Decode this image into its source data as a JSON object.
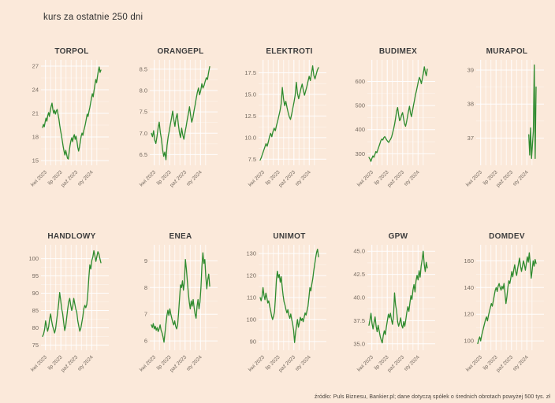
{
  "page": {
    "title": "kurs za ostatnie 250 dni",
    "footer": "źródło: Puls Biznesu, Bankier.pl; dane dotyczą spółek o średnich obrotach powyżej 500 tys. zł",
    "background_color": "#fbe9da",
    "line_color": "#2e8b2e",
    "grid_color": "#ffffff",
    "title_color": "#3d3d3d",
    "tick_color": "#756a60"
  },
  "chart_data": [
    {
      "type": "line",
      "title": "TORPOL",
      "x_tick_labels": [
        "kwi 2023",
        "lip 2023",
        "paź 2023",
        "sty 2024"
      ],
      "y_ticks": [
        15,
        18,
        21,
        24,
        27
      ],
      "y_tick_labels": [
        "15",
        "18",
        "21",
        "24",
        "27"
      ],
      "ylim": [
        14.4,
        27.8
      ],
      "values": [
        19.2,
        19.6,
        19.3,
        19.9,
        20.4,
        20.0,
        20.7,
        21.1,
        20.6,
        21.3,
        21.9,
        22.3,
        21.5,
        21.0,
        21.4,
        20.9,
        21.3,
        21.5,
        20.9,
        20.3,
        19.5,
        18.8,
        18.2,
        17.5,
        16.8,
        16.2,
        15.7,
        16.3,
        15.8,
        15.3,
        15.2,
        16.1,
        16.9,
        17.5,
        17.9,
        17.4,
        18.0,
        18.3,
        17.7,
        18.1,
        17.5,
        16.7,
        16.2,
        16.7,
        17.4,
        18.1,
        18.5,
        18.2,
        18.8,
        19.2,
        19.7,
        20.3,
        20.9,
        20.6,
        21.2,
        21.7,
        22.3,
        22.9,
        23.5,
        23.1,
        23.9,
        24.6,
        25.3,
        24.9,
        25.7,
        26.4,
        26.9,
        26.2,
        26.5
      ]
    },
    {
      "type": "line",
      "title": "ORANGEPL",
      "x_tick_labels": [
        "kwi 2023",
        "lip 2023",
        "paź 2023",
        "sty 2024"
      ],
      "y_ticks": [
        6.5,
        7.0,
        7.5,
        8.0,
        8.5
      ],
      "y_tick_labels": [
        "6.5",
        "7.0",
        "7.5",
        "8.0",
        "8.5"
      ],
      "ylim": [
        6.25,
        8.72
      ],
      "values": [
        7.0,
        6.92,
        7.06,
        6.84,
        6.76,
        6.92,
        7.12,
        7.26,
        7.02,
        6.86,
        6.62,
        6.46,
        6.56,
        6.38,
        6.72,
        6.92,
        7.06,
        7.22,
        7.36,
        7.52,
        7.32,
        7.16,
        7.36,
        7.46,
        7.22,
        7.02,
        6.9,
        7.12,
        6.96,
        6.86,
        7.02,
        7.16,
        7.32,
        7.46,
        7.62,
        7.42,
        7.26,
        7.36,
        7.52,
        7.66,
        7.82,
        7.96,
        8.06,
        7.9,
        8.0,
        8.16,
        8.06,
        8.12,
        8.22,
        8.3,
        8.26,
        8.42,
        8.56
      ]
    },
    {
      "type": "line",
      "title": "ELEKTROTI",
      "x_tick_labels": [
        "kwi 2023",
        "lip 2023",
        "paź 2023",
        "sty 2024"
      ],
      "y_ticks": [
        7.5,
        10.0,
        12.5,
        15.0,
        17.5
      ],
      "y_tick_labels": [
        "7.5",
        "10.0",
        "12.5",
        "15.0",
        "17.5"
      ],
      "ylim": [
        6.8,
        19.0
      ],
      "values": [
        7.4,
        7.7,
        8.1,
        8.5,
        8.9,
        9.3,
        9.0,
        9.5,
        10.1,
        10.5,
        10.1,
        10.7,
        11.1,
        10.8,
        11.4,
        11.9,
        12.5,
        13.1,
        13.9,
        15.8,
        14.5,
        13.7,
        14.2,
        13.5,
        12.9,
        12.4,
        12.1,
        12.7,
        13.4,
        14.1,
        14.9,
        16.4,
        15.1,
        14.5,
        15.1,
        15.7,
        16.2,
        15.5,
        14.9,
        15.4,
        15.9,
        16.5,
        17.1,
        16.6,
        17.4,
        18.3,
        17.2,
        16.8,
        17.3,
        17.8,
        18.1
      ]
    },
    {
      "type": "line",
      "title": "BUDIMEX",
      "x_tick_labels": [
        "kwi 2023",
        "lip 2023",
        "paź 2023",
        "sty 2024"
      ],
      "y_ticks": [
        300,
        400,
        500,
        600
      ],
      "y_tick_labels": [
        "300",
        "400",
        "500",
        "600"
      ],
      "ylim": [
        252,
        690
      ],
      "values": [
        285,
        278,
        268,
        281,
        291,
        285,
        297,
        309,
        304,
        317,
        329,
        341,
        354,
        361,
        357,
        367,
        371,
        364,
        357,
        351,
        347,
        355,
        361,
        371,
        387,
        404,
        424,
        449,
        477,
        492,
        461,
        437,
        444,
        461,
        471,
        447,
        424,
        414,
        431,
        454,
        477,
        497,
        469,
        454,
        477,
        500,
        521,
        544,
        561,
        581,
        601,
        617,
        607,
        591,
        611,
        634,
        661,
        639,
        624,
        651
      ]
    },
    {
      "type": "line",
      "title": "MURAPOL",
      "x_tick_labels": [
        "kwi 2023",
        "lip 2023",
        "paź 2023",
        "sty 2024"
      ],
      "y_ticks": [
        37,
        38,
        39
      ],
      "y_tick_labels": [
        "37",
        "38",
        "39"
      ],
      "ylim": [
        36.2,
        39.3
      ],
      "values": [
        null,
        null,
        null,
        null,
        null,
        null,
        null,
        null,
        null,
        null,
        null,
        null,
        null,
        null,
        null,
        null,
        null,
        null,
        null,
        null,
        null,
        null,
        null,
        null,
        null,
        null,
        null,
        null,
        null,
        null,
        null,
        null,
        null,
        null,
        null,
        null,
        null,
        null,
        null,
        null,
        null,
        null,
        null,
        null,
        null,
        null,
        null,
        null,
        null,
        null,
        null,
        null,
        null,
        null,
        null,
        null,
        37.1,
        36.5,
        37.3,
        36.4,
        36.8,
        37.2,
        39.15,
        36.4,
        38.5
      ]
    },
    {
      "type": "line",
      "title": "HANDLOWY",
      "x_tick_labels": [
        "kwi 2023",
        "lip 2023",
        "paź 2023",
        "sty 2024"
      ],
      "y_ticks": [
        75,
        80,
        85,
        90,
        95,
        100
      ],
      "y_tick_labels": [
        "75",
        "80",
        "85",
        "90",
        "95",
        "100"
      ],
      "ylim": [
        73.5,
        104
      ],
      "values": [
        77.5,
        78.2,
        79.5,
        82.0,
        80.5,
        79.0,
        80.2,
        82.5,
        84.0,
        82.0,
        80.5,
        79.5,
        78.5,
        79.8,
        82.2,
        84.5,
        87.0,
        90.2,
        88.0,
        85.5,
        84.0,
        81.5,
        79.2,
        80.5,
        83.0,
        85.5,
        87.5,
        88.5,
        86.5,
        85.0,
        86.2,
        88.5,
        87.0,
        85.5,
        84.5,
        82.0,
        80.5,
        79.0,
        79.8,
        81.5,
        83.2,
        85.5,
        86.5,
        85.8,
        86.8,
        90.0,
        94.5,
        98.2,
        97.0,
        99.5,
        100.5,
        102.3,
        100.8,
        99.2,
        100.6,
        102.0,
        101.4,
        100.0,
        98.8
      ]
    },
    {
      "type": "line",
      "title": "ENEA",
      "x_tick_labels": [
        "kwi 2023",
        "lip 2023",
        "paź 2023",
        "sty 2024"
      ],
      "y_ticks": [
        6,
        7,
        8,
        9
      ],
      "y_tick_labels": [
        "6",
        "7",
        "8",
        "9"
      ],
      "ylim": [
        5.65,
        9.6
      ],
      "values": [
        6.6,
        6.5,
        6.65,
        6.45,
        6.55,
        6.4,
        6.5,
        6.35,
        6.45,
        6.6,
        6.4,
        6.3,
        6.15,
        5.95,
        6.3,
        6.65,
        6.95,
        7.15,
        6.95,
        7.2,
        7.0,
        6.85,
        6.7,
        6.6,
        6.75,
        6.55,
        6.45,
        6.6,
        7.05,
        7.6,
        8.1,
        8.0,
        8.25,
        7.9,
        8.2,
        9.05,
        8.7,
        8.25,
        7.8,
        7.45,
        7.2,
        7.5,
        7.3,
        7.55,
        7.25,
        7.0,
        6.85,
        7.3,
        7.55,
        7.2,
        7.45,
        8.0,
        8.8,
        9.3,
        8.9,
        9.05,
        8.4,
        7.95,
        8.3,
        8.5,
        8.05
      ]
    },
    {
      "type": "line",
      "title": "UNIMOT",
      "x_tick_labels": [
        "kwi 2023",
        "lip 2023",
        "paź 2023",
        "sty 2024"
      ],
      "y_ticks": [
        90,
        100,
        110,
        120,
        130
      ],
      "y_tick_labels": [
        "90",
        "100",
        "110",
        "120",
        "130"
      ],
      "ylim": [
        86,
        134
      ],
      "values": [
        110,
        108.5,
        110.5,
        114.5,
        111,
        109,
        112,
        110,
        107.5,
        108.5,
        106,
        104,
        101.5,
        100,
        101.5,
        103.5,
        110,
        118,
        122,
        119,
        120.5,
        117,
        119.5,
        115,
        111,
        108,
        106.5,
        104.5,
        103,
        104.5,
        102,
        100.5,
        102.5,
        100,
        98,
        95,
        89.5,
        94,
        97,
        100,
        96.5,
        98.5,
        101,
        99.5,
        100.5,
        99,
        101,
        103,
        102,
        104,
        106,
        110,
        114.5,
        113,
        116,
        118.5,
        122,
        125,
        128,
        130.5,
        132,
        128.5
      ]
    },
    {
      "type": "line",
      "title": "GPW",
      "x_tick_labels": [
        "kwi 2023",
        "lip 2023",
        "paź 2023",
        "sty 2024"
      ],
      "y_ticks": [
        35.0,
        37.5,
        40.0,
        42.5,
        45.0
      ],
      "y_tick_labels": [
        "35.0",
        "37.5",
        "40.0",
        "42.5",
        "45.0"
      ],
      "ylim": [
        34.3,
        45.7
      ],
      "values": [
        37.0,
        37.6,
        38.3,
        37.2,
        36.6,
        37.3,
        37.9,
        36.9,
        36.3,
        37.0,
        36.4,
        35.8,
        35.4,
        35.1,
        35.9,
        36.4,
        36.0,
        36.8,
        37.5,
        38.2,
        37.8,
        38.3,
        37.6,
        37.1,
        38.0,
        40.5,
        39.2,
        38.6,
        37.4,
        36.9,
        37.3,
        37.8,
        37.0,
        36.7,
        37.4,
        36.9,
        37.6,
        38.4,
        39.0,
        38.5,
        39.4,
        40.2,
        39.8,
        40.8,
        41.4,
        40.6,
        41.8,
        42.4,
        41.9,
        42.9,
        42.2,
        43.4,
        44.1,
        45.0,
        43.6,
        42.8,
        43.8,
        43.2
      ]
    },
    {
      "type": "line",
      "title": "DOMDEV",
      "x_tick_labels": [
        "kwi 2023",
        "lip 2023",
        "paź 2023",
        "sty 2024"
      ],
      "y_ticks": [
        100,
        120,
        140,
        160
      ],
      "y_tick_labels": [
        "100",
        "120",
        "140",
        "160"
      ],
      "ylim": [
        93,
        172
      ],
      "values": [
        98,
        101,
        103,
        100,
        104,
        107,
        110,
        113,
        116,
        118,
        115,
        119,
        122,
        125,
        128,
        126,
        130,
        134,
        138,
        140,
        137,
        141,
        143,
        140,
        138,
        141,
        139,
        143,
        136,
        128,
        133,
        140,
        145,
        143,
        147,
        152,
        148,
        153,
        157,
        152,
        149,
        154,
        158,
        162,
        156,
        152,
        156,
        160,
        157,
        153,
        158,
        163,
        159,
        166,
        158,
        147,
        153,
        160,
        156,
        161,
        158
      ]
    }
  ]
}
